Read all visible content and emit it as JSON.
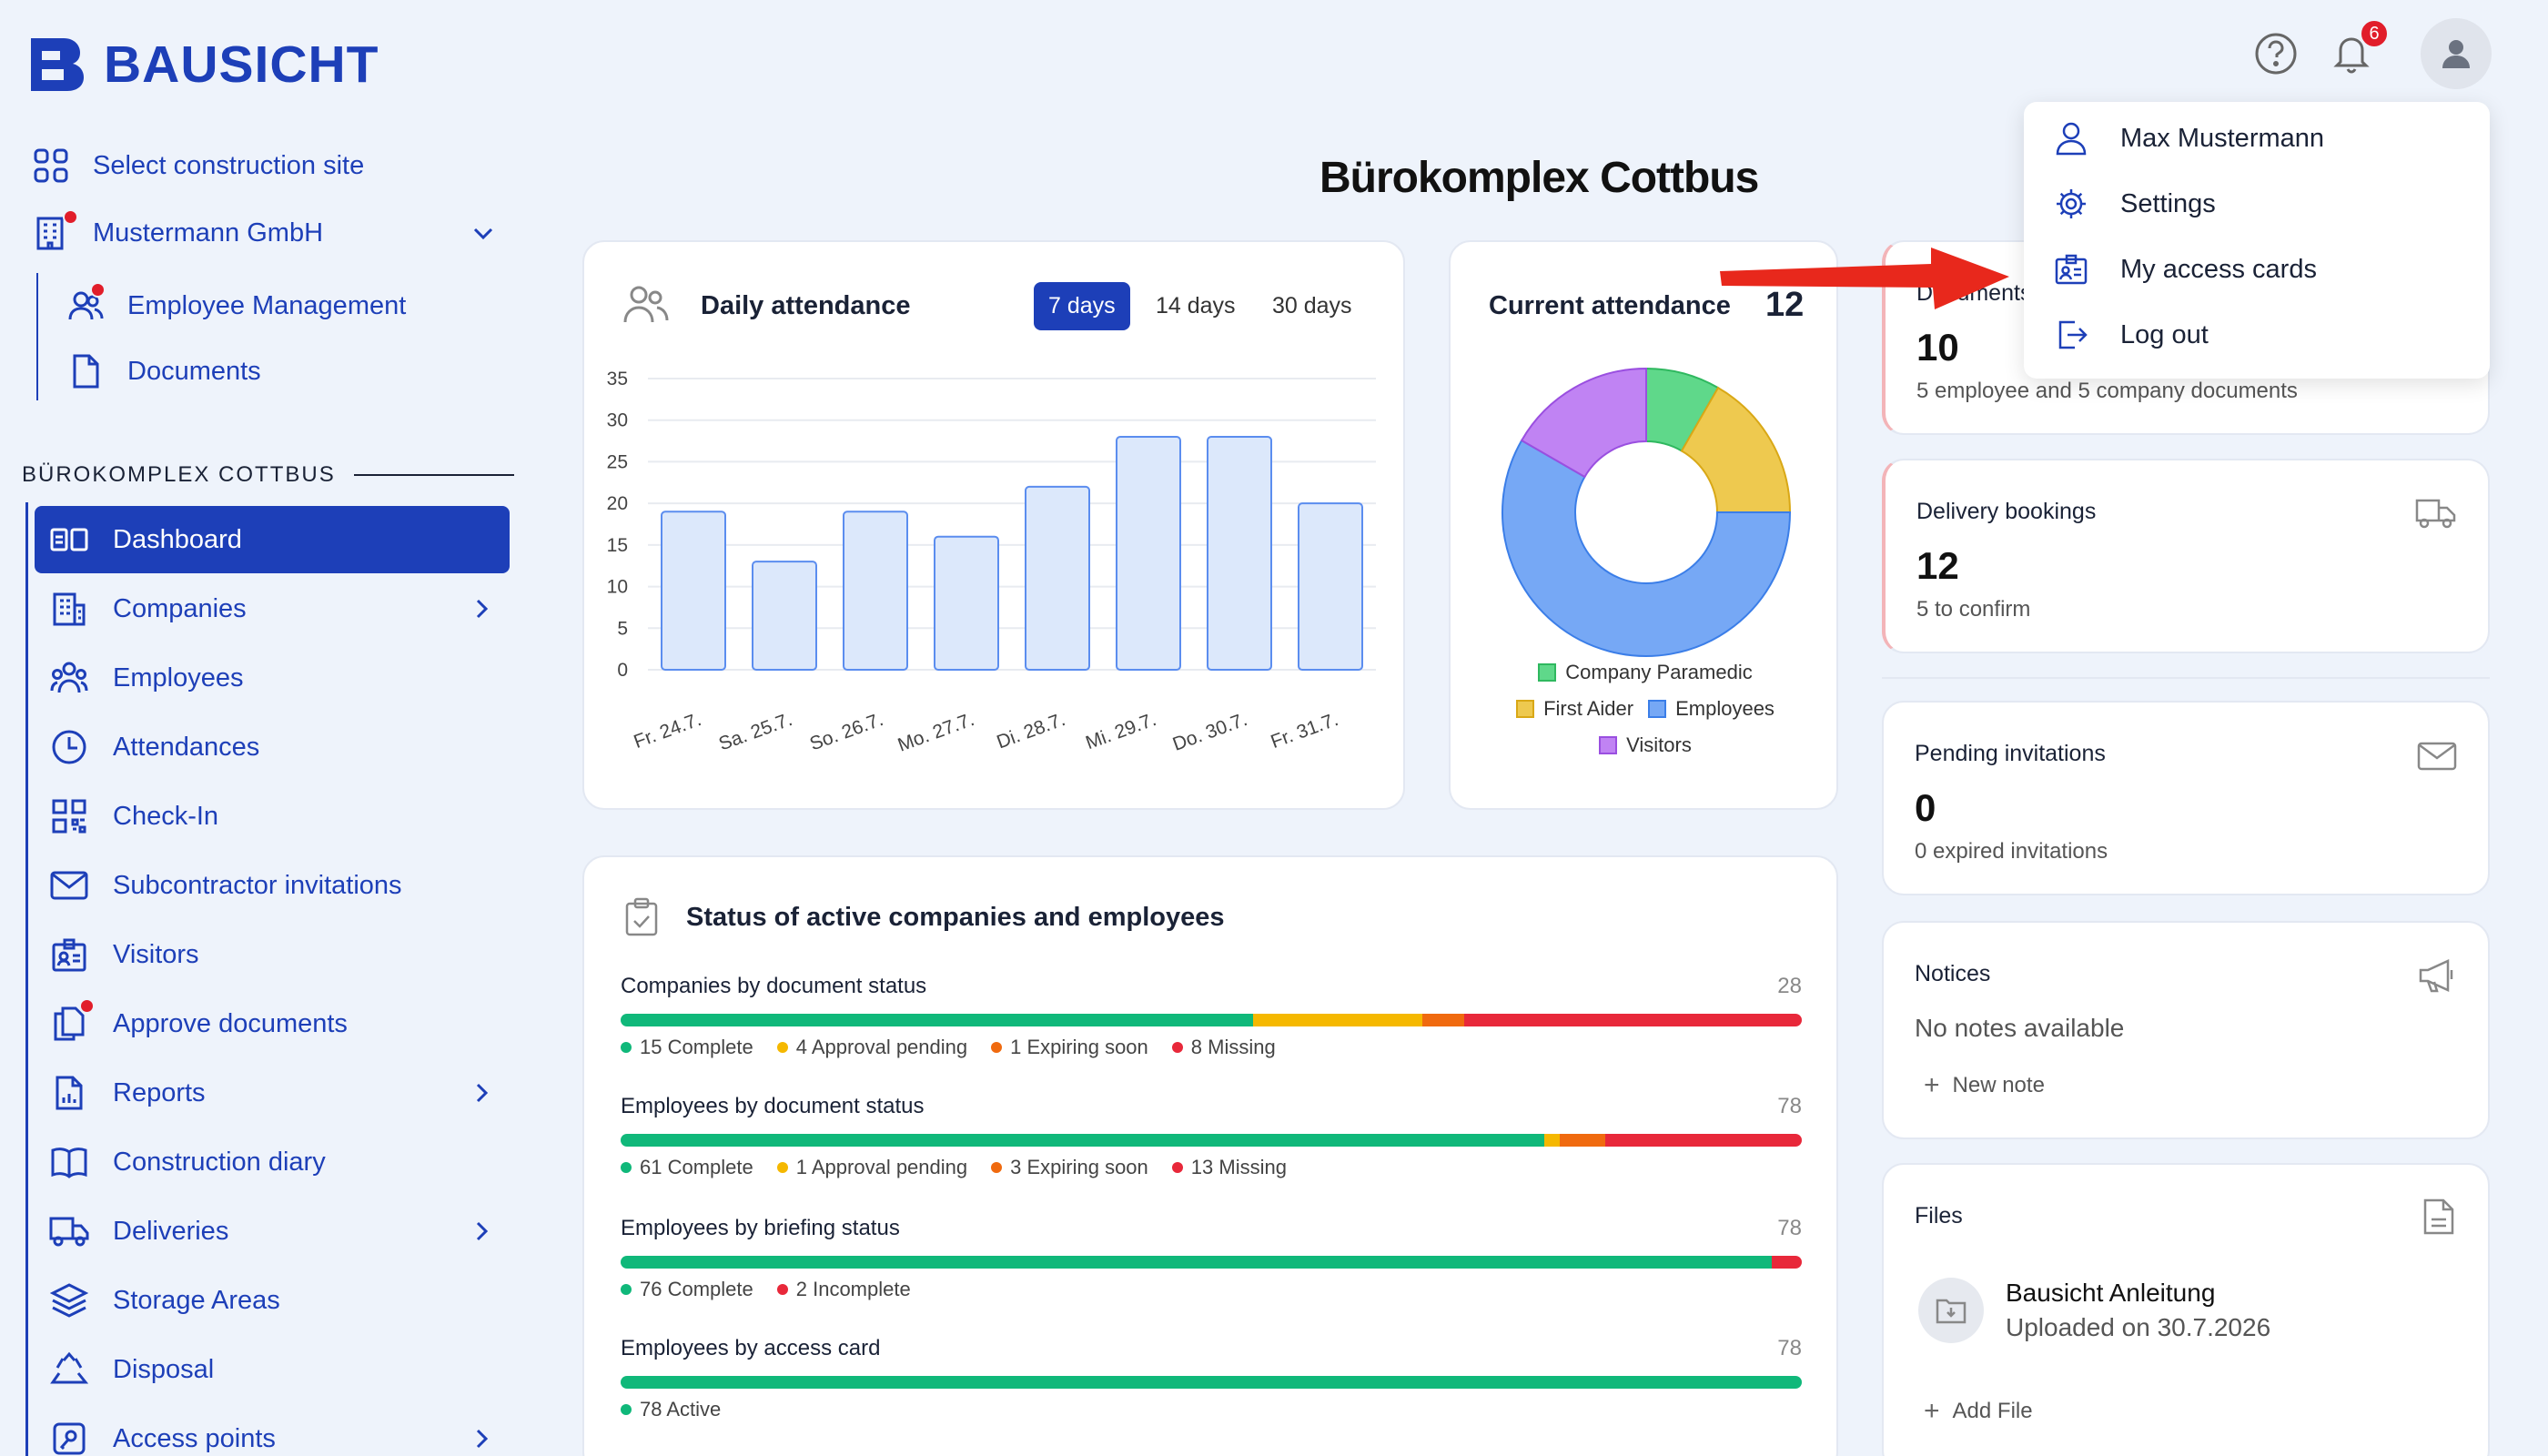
{
  "app": {
    "name": "BAUSICHT"
  },
  "colors": {
    "brand": "#1d3fb8",
    "complete": "#10b87a",
    "pending": "#f5b800",
    "expiring": "#f06a0f",
    "missing": "#e8283a",
    "alert_dot": "#e11d2a"
  },
  "header": {
    "notification_count": "6",
    "icons": [
      "help-icon",
      "bell-icon",
      "user-avatar-icon"
    ]
  },
  "sidebar": {
    "select_site": "Select construction site",
    "company": "Mustermann GmbH",
    "company_items": [
      {
        "label": "Employee Management",
        "alert": true
      },
      {
        "label": "Documents",
        "alert": false
      }
    ],
    "section_label": "BÜROKOMPLEX COTTBUS",
    "nav": [
      {
        "label": "Dashboard",
        "icon": "dashboard-icon",
        "active": true
      },
      {
        "label": "Companies",
        "icon": "building-icon",
        "chevron": true
      },
      {
        "label": "Employees",
        "icon": "users-icon"
      },
      {
        "label": "Attendances",
        "icon": "clock-icon"
      },
      {
        "label": "Check-In",
        "icon": "qr-icon"
      },
      {
        "label": "Subcontractor invitations",
        "icon": "mail-icon"
      },
      {
        "label": "Visitors",
        "icon": "id-card-icon"
      },
      {
        "label": "Approve documents",
        "icon": "documents-icon",
        "alert": true
      },
      {
        "label": "Reports",
        "icon": "report-icon",
        "chevron": true
      },
      {
        "label": "Construction diary",
        "icon": "book-icon"
      },
      {
        "label": "Deliveries",
        "icon": "truck-icon",
        "chevron": true
      },
      {
        "label": "Storage Areas",
        "icon": "layers-icon"
      },
      {
        "label": "Disposal",
        "icon": "recycle-icon"
      },
      {
        "label": "Access points",
        "icon": "access-point-icon",
        "chevron": true
      }
    ]
  },
  "page": {
    "title": "Bürokomplex Cottbus"
  },
  "daily_attendance": {
    "title": "Daily attendance",
    "tabs": [
      {
        "label": "7 days",
        "active": true
      },
      {
        "label": "14 days"
      },
      {
        "label": "30 days"
      }
    ]
  },
  "current_attendance": {
    "title": "Current attendance",
    "count": "12",
    "legend": [
      "Company Paramedic",
      "First Aider",
      "Employees",
      "Visitors"
    ]
  },
  "documents_card": {
    "title": "Documents",
    "value": "10",
    "sub": "5 employee and 5 company documents"
  },
  "delivery_card": {
    "title": "Delivery bookings",
    "value": "12",
    "sub": "5 to confirm"
  },
  "invitations_card": {
    "title": "Pending invitations",
    "value": "0",
    "sub": "0 expired invitations"
  },
  "notices_card": {
    "title": "Notices",
    "empty": "No notes available",
    "action": "New note"
  },
  "files_card": {
    "title": "Files",
    "file_name": "Bausicht Anleitung",
    "file_sub": "Uploaded on 30.7.2026",
    "action": "Add File"
  },
  "status": {
    "title": "Status of active companies and employees",
    "rows": [
      {
        "title": "Companies by document status",
        "total": "28",
        "legend": [
          "15 Complete",
          "4 Approval pending",
          "1 Expiring soon",
          "8 Missing"
        ],
        "segments": [
          15,
          4,
          1,
          8
        ],
        "colors": [
          "complete",
          "pending",
          "expiring",
          "missing"
        ]
      },
      {
        "title": "Employees by document status",
        "total": "78",
        "legend": [
          "61 Complete",
          "1 Approval pending",
          "3 Expiring soon",
          "13 Missing"
        ],
        "segments": [
          61,
          1,
          3,
          13
        ],
        "colors": [
          "complete",
          "pending",
          "expiring",
          "missing"
        ]
      },
      {
        "title": "Employees by briefing status",
        "total": "78",
        "legend": [
          "76 Complete",
          "2 Incomplete"
        ],
        "segments": [
          76,
          2
        ],
        "colors": [
          "complete",
          "missing"
        ]
      },
      {
        "title": "Employees by access card",
        "total": "78",
        "legend": [
          "78 Active"
        ],
        "segments": [
          78
        ],
        "colors": [
          "complete"
        ]
      }
    ]
  },
  "user_menu": {
    "items": [
      {
        "label": "Max Mustermann",
        "icon": "user-icon"
      },
      {
        "label": "Settings",
        "icon": "gear-icon"
      },
      {
        "label": "My access cards",
        "icon": "id-card-icon"
      },
      {
        "label": "Log out",
        "icon": "logout-icon"
      }
    ]
  },
  "chart_data": [
    {
      "type": "bar",
      "categories": [
        "Fr. 24.7.",
        "Sa. 25.7.",
        "So. 26.7.",
        "Mo. 27.7.",
        "Di. 28.7.",
        "Mi. 29.7.",
        "Do. 30.7.",
        "Fr. 31.7."
      ],
      "values": [
        19,
        13,
        19,
        16,
        22,
        28,
        28,
        20
      ],
      "ylim": [
        0,
        35
      ],
      "yticks": [
        0,
        5,
        10,
        15,
        20,
        25,
        30,
        35
      ],
      "grid": true,
      "color": "#5b8def"
    },
    {
      "type": "pie",
      "donut": true,
      "labels": [
        "Company Paramedic",
        "First Aider",
        "Employees",
        "Visitors"
      ],
      "values": [
        1,
        2,
        7,
        2
      ],
      "colors": [
        "#5fd88a",
        "#eec94f",
        "#76a8f5",
        "#c083f3"
      ],
      "legend": "bottom"
    }
  ]
}
